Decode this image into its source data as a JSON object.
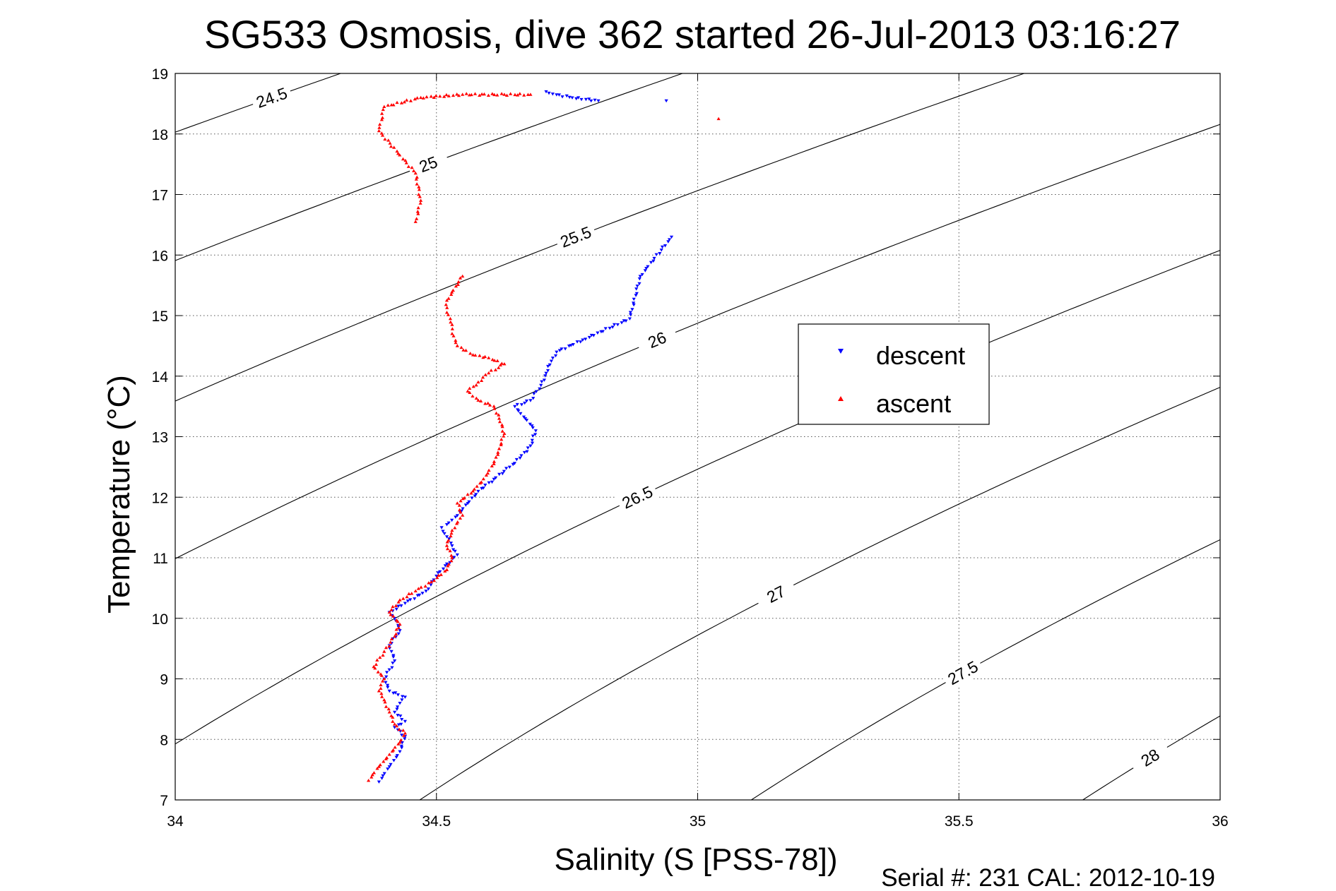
{
  "chart_data": {
    "type": "scatter",
    "title": "SG533 Osmosis, dive 362 started 26-Jul-2013 03:16:27",
    "xlabel": "Salinity (S [PSS-78])",
    "ylabel": "Temperature (°C)",
    "xlim": [
      34,
      36
    ],
    "ylim": [
      7,
      19
    ],
    "x_ticks": [
      "34",
      "34.5",
      "35",
      "35.5",
      "36"
    ],
    "y_ticks": [
      "7",
      "8",
      "9",
      "10",
      "11",
      "12",
      "13",
      "14",
      "15",
      "16",
      "17",
      "18",
      "19"
    ],
    "grid": true,
    "legend_position": "right-center",
    "footer": "Serial #: 231  CAL: 2012-10-19",
    "series": [
      {
        "name": "descent",
        "color": "#0000ff",
        "marker": "triangle-down",
        "points": [
          [
            34.39,
            7.3
          ],
          [
            34.41,
            7.55
          ],
          [
            34.43,
            7.8
          ],
          [
            34.44,
            8.05
          ],
          [
            34.42,
            8.2
          ],
          [
            34.44,
            8.3
          ],
          [
            34.42,
            8.45
          ],
          [
            34.43,
            8.6
          ],
          [
            34.44,
            8.7
          ],
          [
            34.41,
            8.8
          ],
          [
            34.4,
            9.0
          ],
          [
            34.42,
            9.3
          ],
          [
            34.41,
            9.55
          ],
          [
            34.43,
            9.8
          ],
          [
            34.42,
            10.0
          ],
          [
            34.41,
            10.1
          ],
          [
            34.44,
            10.25
          ],
          [
            34.48,
            10.45
          ],
          [
            34.5,
            10.7
          ],
          [
            34.52,
            10.9
          ],
          [
            34.54,
            11.05
          ],
          [
            34.53,
            11.2
          ],
          [
            34.52,
            11.35
          ],
          [
            34.51,
            11.5
          ],
          [
            34.52,
            11.55
          ],
          [
            34.54,
            11.7
          ],
          [
            34.56,
            11.9
          ],
          [
            34.58,
            12.1
          ],
          [
            34.61,
            12.3
          ],
          [
            34.64,
            12.5
          ],
          [
            34.66,
            12.65
          ],
          [
            34.68,
            12.85
          ],
          [
            34.69,
            13.1
          ],
          [
            34.67,
            13.3
          ],
          [
            34.65,
            13.5
          ],
          [
            34.68,
            13.6
          ],
          [
            34.7,
            13.85
          ],
          [
            34.71,
            14.05
          ],
          [
            34.72,
            14.25
          ],
          [
            34.73,
            14.4
          ],
          [
            34.78,
            14.6
          ],
          [
            34.87,
            14.95
          ],
          [
            34.89,
            15.65
          ],
          [
            34.95,
            16.3
          ],
          [
            34.94,
            18.55
          ],
          [
            34.81,
            18.55
          ],
          [
            34.76,
            18.6
          ],
          [
            34.73,
            18.65
          ],
          [
            34.71,
            18.7
          ]
        ]
      },
      {
        "name": "ascent",
        "color": "#ff0000",
        "marker": "triangle-up",
        "points": [
          [
            34.37,
            7.32
          ],
          [
            34.39,
            7.55
          ],
          [
            34.41,
            7.75
          ],
          [
            34.43,
            7.95
          ],
          [
            34.44,
            8.1
          ],
          [
            34.42,
            8.25
          ],
          [
            34.41,
            8.45
          ],
          [
            34.4,
            8.65
          ],
          [
            34.39,
            8.8
          ],
          [
            34.4,
            9.0
          ],
          [
            34.38,
            9.2
          ],
          [
            34.4,
            9.45
          ],
          [
            34.42,
            9.7
          ],
          [
            34.43,
            9.9
          ],
          [
            34.41,
            10.1
          ],
          [
            34.43,
            10.3
          ],
          [
            34.46,
            10.45
          ],
          [
            34.49,
            10.6
          ],
          [
            34.52,
            10.8
          ],
          [
            34.53,
            11.0
          ],
          [
            34.52,
            11.2
          ],
          [
            34.53,
            11.45
          ],
          [
            34.55,
            11.7
          ],
          [
            34.54,
            11.9
          ],
          [
            34.57,
            12.1
          ],
          [
            34.59,
            12.3
          ],
          [
            34.61,
            12.55
          ],
          [
            34.62,
            12.8
          ],
          [
            34.63,
            13.05
          ],
          [
            34.62,
            13.3
          ],
          [
            34.61,
            13.5
          ],
          [
            34.58,
            13.6
          ],
          [
            34.56,
            13.75
          ],
          [
            34.58,
            13.9
          ],
          [
            34.6,
            14.05
          ],
          [
            34.63,
            14.2
          ],
          [
            34.6,
            14.3
          ],
          [
            34.57,
            14.35
          ],
          [
            34.54,
            14.5
          ],
          [
            34.53,
            14.7
          ],
          [
            34.53,
            14.85
          ],
          [
            34.52,
            15.05
          ],
          [
            34.52,
            15.25
          ],
          [
            34.55,
            15.65
          ],
          [
            34.46,
            16.55
          ],
          [
            34.47,
            16.9
          ],
          [
            34.46,
            17.35
          ],
          [
            34.39,
            18.05
          ],
          [
            34.4,
            18.45
          ],
          [
            34.47,
            18.6
          ],
          [
            34.55,
            18.65
          ],
          [
            34.63,
            18.65
          ],
          [
            34.68,
            18.65
          ],
          [
            35.04,
            18.25
          ]
        ]
      }
    ],
    "contours": [
      {
        "label": "24.5"
      },
      {
        "label": "25"
      },
      {
        "label": "25.5"
      },
      {
        "label": "26"
      },
      {
        "label": "26.5"
      },
      {
        "label": "27"
      },
      {
        "label": "27.5"
      },
      {
        "label": "28"
      }
    ]
  }
}
